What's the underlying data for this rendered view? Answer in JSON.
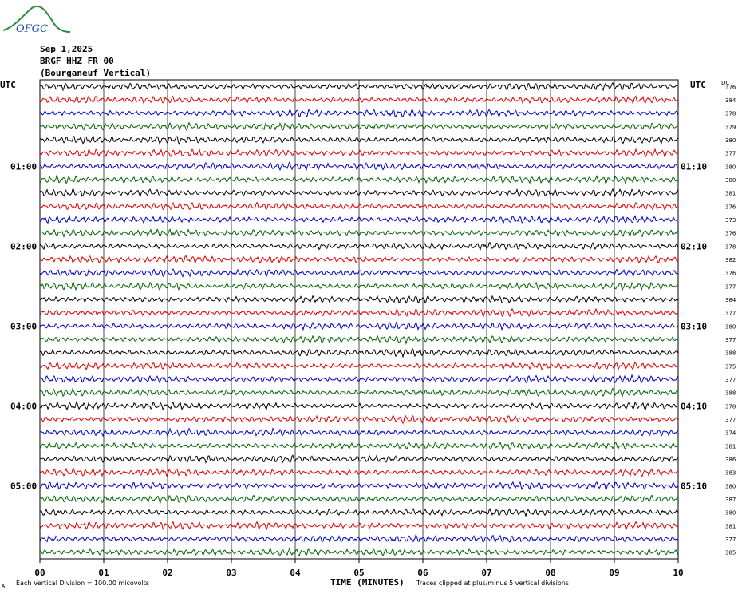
{
  "logo": {
    "text": "OFGC"
  },
  "header": {
    "date": "Sep 1,2025",
    "station": "BRGF HHZ FR 00",
    "location": "(Bourganeuf Vertical)"
  },
  "utc_label_left": "UTC",
  "utc_label_right": "UTC",
  "dc_label": "DC",
  "footer": {
    "xlabel": "TIME (MINUTES)",
    "scale_note": "Each Vertical Division =  100.00 micovolts",
    "clip_note": "Traces clipped at plus/minus 5 vertical divisions",
    "corner_mark": "A"
  },
  "chart_data": {
    "type": "line",
    "title": "",
    "xlabel": "TIME (MINUTES)",
    "ylabel": "",
    "xlim": [
      0,
      10
    ],
    "x_ticks": [
      "00",
      "01",
      "02",
      "03",
      "04",
      "05",
      "06",
      "07",
      "08",
      "09",
      "10"
    ],
    "rows": 36,
    "minutes_per_row": 10,
    "trace_colors": [
      "#000000",
      "#e00000",
      "#0000cc",
      "#006600"
    ],
    "hour_labels_left": [
      {
        "row": 6,
        "label": "01:00"
      },
      {
        "row": 12,
        "label": "02:00"
      },
      {
        "row": 18,
        "label": "03:00"
      },
      {
        "row": 24,
        "label": "04:00"
      },
      {
        "row": 30,
        "label": "05:00"
      }
    ],
    "hour_labels_right": [
      {
        "row": 6,
        "label": "01:10"
      },
      {
        "row": 12,
        "label": "02:10"
      },
      {
        "row": 18,
        "label": "03:10"
      },
      {
        "row": 24,
        "label": "04:10"
      },
      {
        "row": 30,
        "label": "05:10"
      }
    ],
    "dc_offsets": [
      "376",
      "384",
      "378",
      "379",
      "380",
      "377",
      "380",
      "380",
      "381",
      "376",
      "373",
      "376",
      "378",
      "382",
      "376",
      "377",
      "384",
      "377",
      "380",
      "377",
      "388",
      "375",
      "377",
      "388",
      "378",
      "377",
      "374",
      "381",
      "386",
      "383",
      "380",
      "387",
      "380",
      "381",
      "377",
      "385"
    ]
  }
}
